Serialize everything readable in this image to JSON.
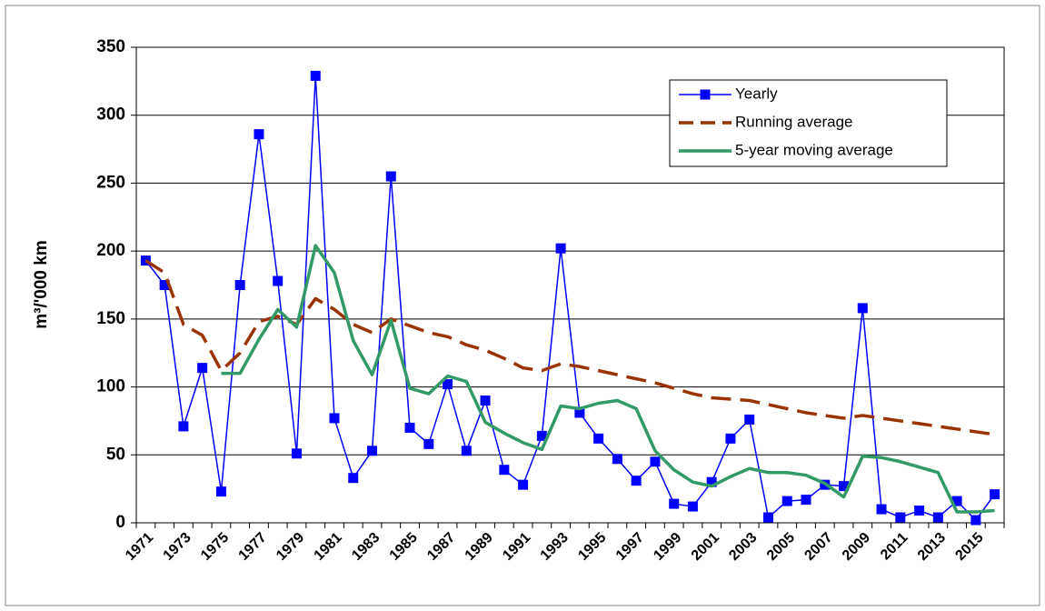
{
  "chart_data": {
    "type": "line",
    "y_label": "m³/'000 km",
    "categories": [
      "1971",
      null,
      "1973",
      null,
      "1975",
      null,
      "1977",
      null,
      "1979",
      null,
      "1981",
      null,
      "1983",
      null,
      "1985",
      null,
      "1987",
      null,
      "1989",
      null,
      "1991",
      null,
      "1993",
      null,
      "1995",
      null,
      "1997",
      null,
      "1999",
      null,
      "2001",
      null,
      "2003",
      null,
      "2005",
      null,
      "2007",
      null,
      "2009",
      null,
      "2011",
      null,
      "2013",
      null,
      "2015",
      null
    ],
    "series": [
      {
        "name": "Yearly",
        "color": "#0000ff",
        "style": "solid-markers",
        "values": [
          193,
          175,
          71,
          114,
          23,
          175,
          286,
          178,
          51,
          329,
          77,
          33,
          53,
          255,
          70,
          58,
          102,
          53,
          90,
          39,
          28,
          64,
          202,
          81,
          62,
          47,
          31,
          45,
          14,
          12,
          30,
          62,
          76,
          4,
          16,
          17,
          28,
          27,
          158,
          10,
          4,
          9,
          4,
          16,
          2,
          21
        ]
      },
      {
        "name": "Running average",
        "color": "#993300",
        "style": "dashed",
        "values": [
          193,
          184,
          146,
          138,
          112,
          125,
          148,
          152,
          146,
          165,
          157,
          146,
          140,
          150,
          145,
          140,
          137,
          131,
          127,
          121,
          114,
          112,
          117,
          115,
          112,
          109,
          106,
          103,
          99,
          95,
          92,
          91,
          90,
          87,
          84,
          81,
          79,
          77,
          79,
          77,
          75,
          73,
          71,
          69,
          67,
          65
        ]
      },
      {
        "name": "5-year moving average",
        "color": "#339966",
        "style": "solid",
        "values": [
          null,
          null,
          null,
          null,
          110,
          110,
          135,
          157,
          144,
          204,
          184,
          134,
          109,
          149,
          99,
          95,
          108,
          104,
          74,
          66,
          59,
          54,
          86,
          84,
          88,
          90,
          84,
          53,
          39,
          30,
          27,
          34,
          40,
          37,
          37,
          35,
          29,
          19,
          49,
          48,
          45,
          41,
          37,
          8,
          8,
          9
        ]
      }
    ],
    "ylim": [
      0,
      350
    ],
    "yticks": [
      0,
      50,
      100,
      150,
      200,
      250,
      300,
      350
    ],
    "grid": true,
    "legend": "top-right"
  }
}
